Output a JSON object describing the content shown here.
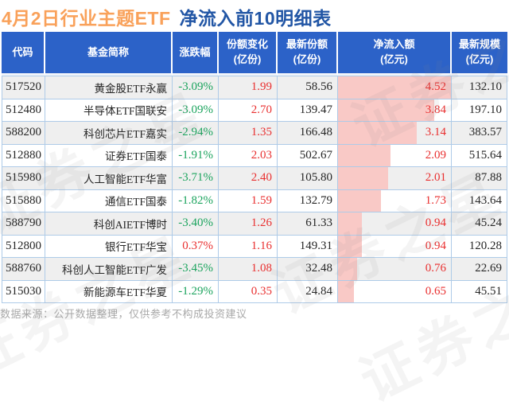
{
  "title": {
    "highlight": "4月2日行业主题ETF",
    "rest": "净流入前10明细表"
  },
  "watermark": "证券之星",
  "colors": {
    "header_bg": "#2c62c8",
    "title_orange": "#f9a15a",
    "title_blue": "#2256a5",
    "up_red": "#e93030",
    "down_green": "#1ca45e",
    "bar_pink": "#f9c9c6",
    "grid": "#aecbe8"
  },
  "footer": "数据来源：公开数据整理，仅供参考不构成投资建议",
  "chart_data": {
    "type": "table",
    "title": "4月2日行业主题ETF 净流入前10明细表",
    "columns": [
      {
        "key": "code",
        "label": "代码",
        "unit": ""
      },
      {
        "key": "name",
        "label": "基金简称",
        "unit": ""
      },
      {
        "key": "change",
        "label": "涨跌幅",
        "unit": ""
      },
      {
        "key": "share_change",
        "label": "份额变化",
        "unit": "(亿份)"
      },
      {
        "key": "latest_share",
        "label": "最新份额",
        "unit": "(亿份)"
      },
      {
        "key": "net_inflow",
        "label": "净流入额",
        "unit": "(亿元)"
      },
      {
        "key": "scale",
        "label": "最新规模",
        "unit": "(亿元)"
      }
    ],
    "net_inflow_max": 4.52,
    "rows": [
      {
        "code": "517520",
        "name": "黄金股ETF永赢",
        "change": "-3.09%",
        "share_change": "1.99",
        "latest_share": "58.56",
        "net_inflow": "4.52",
        "scale": "132.10"
      },
      {
        "code": "512480",
        "name": "半导体ETF国联安",
        "change": "-3.09%",
        "share_change": "2.70",
        "latest_share": "139.47",
        "net_inflow": "3.84",
        "scale": "197.10"
      },
      {
        "code": "588200",
        "name": "科创芯片ETF嘉实",
        "change": "-2.94%",
        "share_change": "1.35",
        "latest_share": "166.48",
        "net_inflow": "3.14",
        "scale": "383.57"
      },
      {
        "code": "512880",
        "name": "证券ETF国泰",
        "change": "-1.91%",
        "share_change": "2.03",
        "latest_share": "502.67",
        "net_inflow": "2.09",
        "scale": "515.64"
      },
      {
        "code": "515980",
        "name": "人工智能ETF华富",
        "change": "-3.71%",
        "share_change": "2.40",
        "latest_share": "105.80",
        "net_inflow": "2.01",
        "scale": "87.88"
      },
      {
        "code": "515880",
        "name": "通信ETF国泰",
        "change": "-1.82%",
        "share_change": "1.59",
        "latest_share": "132.79",
        "net_inflow": "1.73",
        "scale": "143.64"
      },
      {
        "code": "588790",
        "name": "科创AIETF博时",
        "change": "-3.40%",
        "share_change": "1.26",
        "latest_share": "61.33",
        "net_inflow": "0.94",
        "scale": "45.24"
      },
      {
        "code": "512800",
        "name": "银行ETF华宝",
        "change": "0.37%",
        "share_change": "1.16",
        "latest_share": "149.31",
        "net_inflow": "0.94",
        "scale": "120.28"
      },
      {
        "code": "588760",
        "name": "科创人工智能ETF广发",
        "change": "-3.45%",
        "share_change": "1.08",
        "latest_share": "32.48",
        "net_inflow": "0.76",
        "scale": "22.69"
      },
      {
        "code": "515030",
        "name": "新能源车ETF华夏",
        "change": "-1.29%",
        "share_change": "0.35",
        "latest_share": "24.84",
        "net_inflow": "0.65",
        "scale": "45.51"
      }
    ]
  }
}
